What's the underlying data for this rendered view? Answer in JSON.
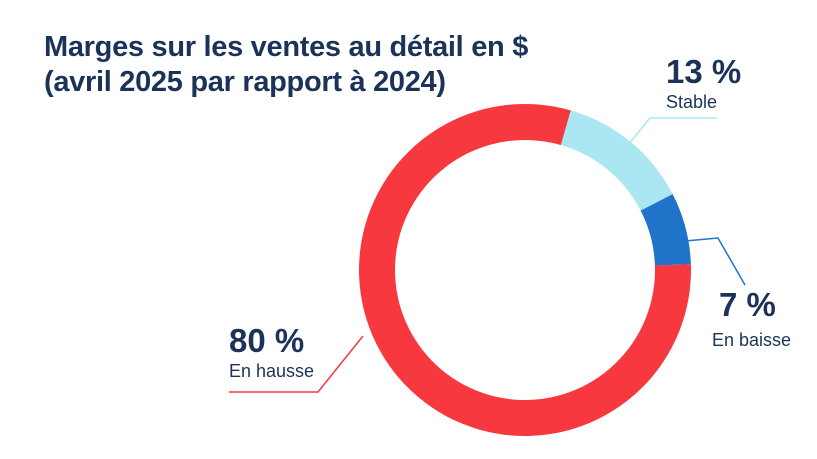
{
  "chart_data": {
    "type": "pie",
    "variant": "donut",
    "title_lines": [
      "Marges sur les ventes au détail en $",
      "(avril 2025 par rapport à 2024)"
    ],
    "slices": [
      {
        "name": "Stable",
        "value": 13,
        "value_label": "13 %",
        "color": "#abe6f3",
        "leader_color": "#abe6f3"
      },
      {
        "name": "En baisse",
        "value": 7,
        "value_label": "7 %",
        "color": "#1f73c9",
        "leader_color": "#1f73c9"
      },
      {
        "name": "En hausse",
        "value": 80,
        "value_label": "80 %",
        "color": "#f7383f",
        "leader_color": "#f7383f"
      }
    ],
    "start_angle_deg": 16,
    "direction": "clockwise",
    "legend": "none"
  },
  "colors": {
    "title": "#1b3358",
    "background": "#ffffff"
  }
}
